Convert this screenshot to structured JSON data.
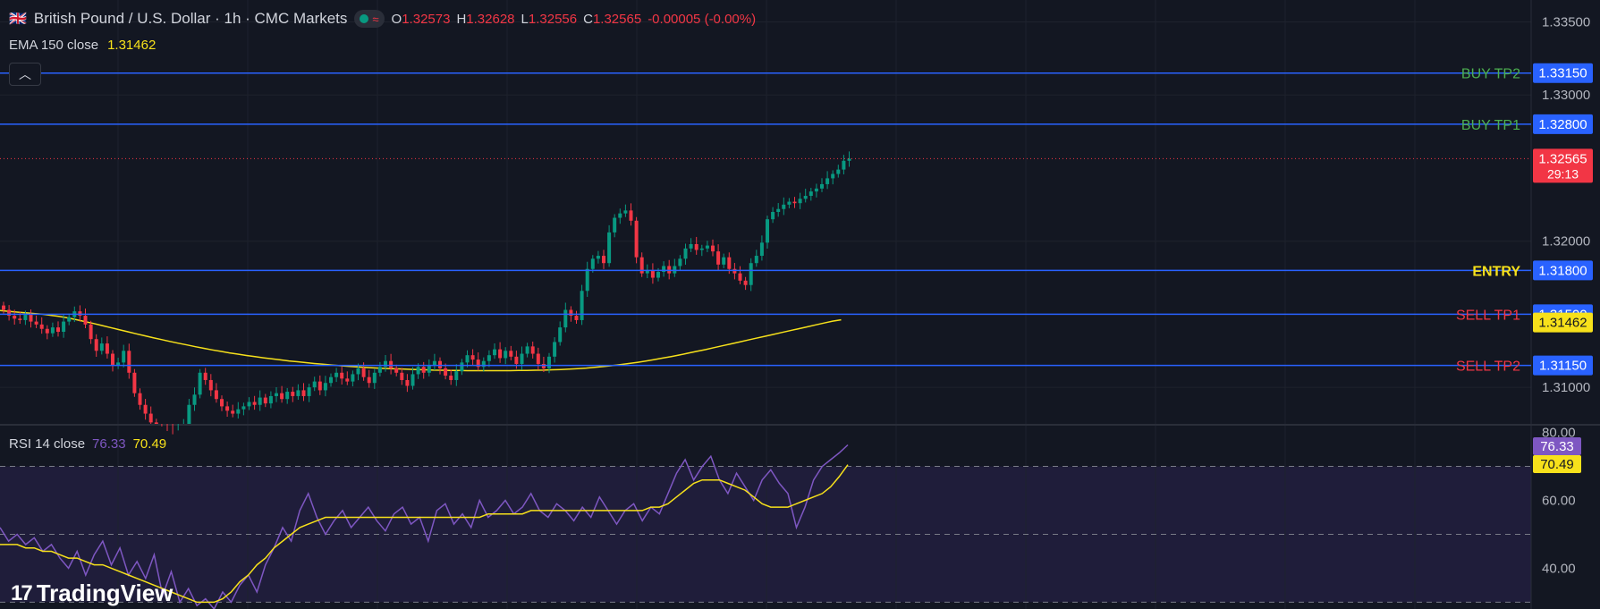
{
  "header": {
    "flag_icon": "gb-us-flag-icon",
    "title": "British Pound / U.S. Dollar · 1h · CMC Markets",
    "status_wave": "≈",
    "ohlc": {
      "o_label": "O",
      "o": "1.32573",
      "h_label": "H",
      "h": "1.32628",
      "l_label": "L",
      "l": "1.32556",
      "c_label": "C",
      "c": "1.32565",
      "change": "-0.00005 (-0.00%)"
    }
  },
  "ema_legend": {
    "label": "EMA 150 close",
    "value": "1.31462"
  },
  "collapse_icon": "chevron-up-icon",
  "rsi_legend": {
    "label": "RSI 14 close",
    "rsi": "76.33",
    "ma": "70.49"
  },
  "logo": {
    "mark": "17",
    "text": "TradingView"
  },
  "colors": {
    "background": "#131722",
    "grid": "#1e222d",
    "up": "#089981",
    "down": "#f23645",
    "level_line": "#2962ff",
    "ema": "#f7e11b",
    "rsi": "#7e57c2",
    "buy_label": "#4caf50",
    "sell_label": "#f23645",
    "entry_label": "#f7e11b"
  },
  "chart_data": [
    {
      "type": "candlestick",
      "title": "British Pound / U.S. Dollar · 1h · CMC Markets",
      "ylim": [
        1.3075,
        1.3365
      ],
      "y_ticks": [
        "1.33500",
        "1.33000",
        "1.32000",
        "1.31000"
      ],
      "grid": true,
      "levels": [
        {
          "name": "BUY TP2",
          "value": 1.3315,
          "label": "1.33150",
          "side": "buy"
        },
        {
          "name": "BUY TP1",
          "value": 1.328,
          "label": "1.32800",
          "side": "buy"
        },
        {
          "name": "ENTRY",
          "value": 1.318,
          "label": "1.31800",
          "side": "entry"
        },
        {
          "name": "SELL TP1",
          "value": 1.315,
          "label": "1.31500",
          "side": "sell"
        },
        {
          "name": "SELL TP2",
          "value": 1.3115,
          "label": "1.31150",
          "side": "sell"
        }
      ],
      "last_price": {
        "value": 1.32565,
        "label": "1.32565",
        "countdown": "29:13"
      },
      "ema_last": {
        "value": 1.31462,
        "label": "1.31462"
      },
      "close": [
        1.3153,
        1.3149,
        1.3147,
        1.3146,
        1.315,
        1.3145,
        1.3143,
        1.314,
        1.3137,
        1.3141,
        1.3138,
        1.3145,
        1.3148,
        1.3152,
        1.3149,
        1.3143,
        1.3133,
        1.3125,
        1.313,
        1.3123,
        1.3115,
        1.3117,
        1.3125,
        1.311,
        1.3096,
        1.3088,
        1.3082,
        1.3076,
        1.307,
        1.3066,
        1.3063,
        1.3062,
        1.3068,
        1.3075,
        1.3088,
        1.3095,
        1.311,
        1.3105,
        1.3098,
        1.3092,
        1.3087,
        1.3084,
        1.3082,
        1.3085,
        1.3087,
        1.309,
        1.3088,
        1.3093,
        1.3089,
        1.3094,
        1.3096,
        1.3092,
        1.3097,
        1.3094,
        1.3098,
        1.3094,
        1.31,
        1.3104,
        1.3098,
        1.3103,
        1.3107,
        1.311,
        1.3106,
        1.3104,
        1.3109,
        1.3113,
        1.3107,
        1.3103,
        1.311,
        1.3114,
        1.3118,
        1.3113,
        1.311,
        1.3105,
        1.3101,
        1.3109,
        1.3114,
        1.311,
        1.3115,
        1.3118,
        1.3113,
        1.3108,
        1.3105,
        1.3111,
        1.3117,
        1.3122,
        1.3119,
        1.3114,
        1.3118,
        1.3122,
        1.3126,
        1.312,
        1.3125,
        1.3121,
        1.3116,
        1.3123,
        1.3128,
        1.3123,
        1.3116,
        1.3113,
        1.3121,
        1.3131,
        1.3141,
        1.3153,
        1.3149,
        1.3146,
        1.3166,
        1.3181,
        1.3188,
        1.319,
        1.3185,
        1.3206,
        1.3216,
        1.3219,
        1.3221,
        1.3214,
        1.3189,
        1.3178,
        1.318,
        1.3175,
        1.3179,
        1.3183,
        1.3178,
        1.3183,
        1.3188,
        1.3195,
        1.3198,
        1.3194,
        1.3195,
        1.3197,
        1.3193,
        1.3184,
        1.3189,
        1.3181,
        1.3178,
        1.3173,
        1.317,
        1.3185,
        1.319,
        1.3199,
        1.3215,
        1.322,
        1.3222,
        1.3225,
        1.3227,
        1.3226,
        1.3229,
        1.3231,
        1.3234,
        1.3236,
        1.3239,
        1.3243,
        1.3246,
        1.3249,
        1.3255,
        1.32565
      ],
      "ema": [
        1.31525,
        1.3152,
        1.31515,
        1.3151,
        1.31505,
        1.315,
        1.31493,
        1.31485,
        1.31475,
        1.31463,
        1.3145,
        1.31437,
        1.31423,
        1.31409,
        1.31395,
        1.31381,
        1.31367,
        1.31353,
        1.3134,
        1.31327,
        1.31314,
        1.31302,
        1.3129,
        1.31278,
        1.31267,
        1.31256,
        1.31246,
        1.31236,
        1.31227,
        1.31218,
        1.3121,
        1.31202,
        1.31195,
        1.31188,
        1.31181,
        1.31175,
        1.31169,
        1.31163,
        1.31158,
        1.31153,
        1.31148,
        1.31144,
        1.3114,
        1.31136,
        1.31133,
        1.3113,
        1.31128,
        1.31126,
        1.31124,
        1.31122,
        1.3112,
        1.31118,
        1.31117,
        1.31116,
        1.31115,
        1.31114,
        1.31114,
        1.31114,
        1.31114,
        1.31114,
        1.31114,
        1.31115,
        1.31116,
        1.31117,
        1.31118,
        1.3112,
        1.31122,
        1.31125,
        1.31128,
        1.31132,
        1.31137,
        1.31142,
        1.31148,
        1.31155,
        1.31163,
        1.31171,
        1.3118,
        1.3119,
        1.312,
        1.31211,
        1.31222,
        1.31234,
        1.31246,
        1.31258,
        1.31271,
        1.31284,
        1.31297,
        1.3131,
        1.31323,
        1.31336,
        1.31349,
        1.31362,
        1.31375,
        1.31388,
        1.31401,
        1.31414,
        1.31427,
        1.3144,
        1.31453,
        1.31462
      ]
    },
    {
      "type": "line",
      "title": "RSI 14 close",
      "ylim": [
        28,
        82
      ],
      "y_ticks": [
        "80.00",
        "60.00",
        "40.00"
      ],
      "bands": [
        70,
        50,
        30
      ],
      "series": [
        {
          "name": "RSI",
          "last": "76.33",
          "values": [
            52,
            48,
            50,
            47,
            49,
            45,
            47,
            43,
            40,
            45,
            38,
            44,
            48,
            41,
            46,
            38,
            42,
            37,
            44,
            32,
            39,
            30,
            34,
            29,
            31,
            28,
            33,
            30,
            35,
            38,
            33,
            41,
            46,
            52,
            48,
            57,
            62,
            55,
            50,
            54,
            57,
            52,
            55,
            58,
            54,
            51,
            56,
            58,
            53,
            55,
            48,
            57,
            59,
            53,
            56,
            52,
            60,
            55,
            57,
            60,
            56,
            58,
            62,
            57,
            55,
            59,
            57,
            54,
            58,
            55,
            61,
            57,
            53,
            57,
            59,
            54,
            58,
            56,
            62,
            68,
            72,
            66,
            70,
            73,
            66,
            62,
            68,
            64,
            60,
            66,
            69,
            65,
            62,
            52,
            58,
            66,
            70,
            72,
            74,
            76.33
          ]
        },
        {
          "name": "RSI MA",
          "last": "70.49",
          "values": [
            47,
            47,
            47,
            46,
            46,
            45,
            45,
            44,
            43,
            43,
            42,
            41,
            41,
            40,
            39,
            38,
            37,
            36,
            35,
            34,
            33,
            32,
            31,
            30,
            30,
            30,
            31,
            33,
            36,
            38,
            41,
            43,
            46,
            48,
            50,
            52,
            53,
            54,
            55,
            55,
            55,
            55,
            55,
            55,
            55,
            55,
            55,
            55,
            55,
            55,
            55,
            55,
            55,
            55,
            55,
            55,
            55,
            56,
            56,
            56,
            56,
            56,
            57,
            57,
            57,
            57,
            57,
            57,
            57,
            57,
            57,
            57,
            57,
            57,
            57,
            57,
            58,
            58,
            59,
            61,
            63,
            65,
            66,
            66,
            66,
            65,
            64,
            63,
            61,
            59,
            58,
            58,
            58,
            59,
            60,
            61,
            62,
            64,
            67,
            70.49
          ]
        }
      ]
    }
  ]
}
